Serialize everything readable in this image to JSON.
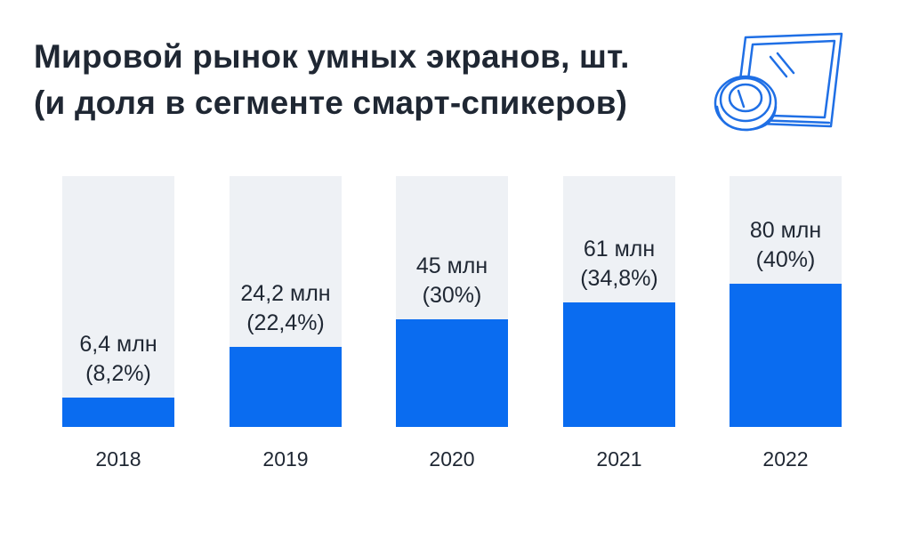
{
  "title": {
    "line1": "Мировой рынок умных экранов, шт.",
    "line2": "(и доля в сегменте смарт-спикеров)"
  },
  "colors": {
    "bar": "#0a6cf0",
    "track": "#eef1f5",
    "text": "#1f2733",
    "icon": "#1f6fe5"
  },
  "icon": "smart-display-icon",
  "chart_data": {
    "type": "bar",
    "categories": [
      "2018",
      "2019",
      "2020",
      "2021",
      "2022"
    ],
    "values": [
      8.2,
      22.4,
      30,
      34.8,
      40
    ],
    "units_shipped_mln": [
      6.4,
      24.2,
      45,
      61,
      80
    ],
    "labels_top": [
      "6,4 млн",
      "24,2 млн",
      "45 млн",
      "61 млн",
      "80 млн"
    ],
    "labels_bottom": [
      "(8,2%)",
      "(22,4%)",
      "(30%)",
      "(34,8%)",
      "(40%)"
    ],
    "ylim": [
      0,
      100
    ],
    "xlabel": "",
    "ylabel": "",
    "grid": false,
    "legend": "none"
  }
}
